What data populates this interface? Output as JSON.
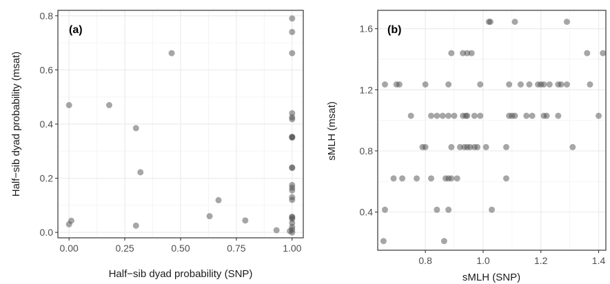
{
  "chart_data": [
    {
      "type": "scatter",
      "panel_label": "(a)",
      "xlabel": "Half−sib dyad probability (SNP)",
      "ylabel": "Half−sib dyad probability (msat)",
      "xlim": [
        -0.05,
        1.05
      ],
      "ylim": [
        -0.02,
        0.82
      ],
      "xticks": [
        0,
        0.25,
        0.5,
        0.75,
        1
      ],
      "xtick_labels": [
        "0.00",
        "0.25",
        "0.50",
        "0.75",
        "1.00"
      ],
      "yticks": [
        0,
        0.2,
        0.4,
        0.6,
        0.8
      ],
      "ytick_labels": [
        "0.0",
        "0.2",
        "0.4",
        "0.6",
        "0.8"
      ],
      "grid": true,
      "point_color": "#4d4d4d",
      "points": [
        {
          "x": 0.0,
          "y": 0.47
        },
        {
          "x": 0.0,
          "y": 0.03
        },
        {
          "x": 0.01,
          "y": 0.043
        },
        {
          "x": 0.18,
          "y": 0.47
        },
        {
          "x": 0.3,
          "y": 0.385
        },
        {
          "x": 0.32,
          "y": 0.222
        },
        {
          "x": 0.3,
          "y": 0.025
        },
        {
          "x": 0.46,
          "y": 0.662
        },
        {
          "x": 0.63,
          "y": 0.06
        },
        {
          "x": 0.67,
          "y": 0.119
        },
        {
          "x": 0.79,
          "y": 0.044
        },
        {
          "x": 0.93,
          "y": 0.008
        },
        {
          "x": 0.99,
          "y": 0.005
        },
        {
          "x": 1.0,
          "y": 0.79
        },
        {
          "x": 1.0,
          "y": 0.74
        },
        {
          "x": 1.0,
          "y": 0.662
        },
        {
          "x": 1.0,
          "y": 0.44
        },
        {
          "x": 1.0,
          "y": 0.425
        },
        {
          "x": 1.0,
          "y": 0.418
        },
        {
          "x": 1.0,
          "y": 0.352
        },
        {
          "x": 1.0,
          "y": 0.35
        },
        {
          "x": 1.0,
          "y": 0.353
        },
        {
          "x": 1.0,
          "y": 0.24
        },
        {
          "x": 1.0,
          "y": 0.238
        },
        {
          "x": 1.0,
          "y": 0.175
        },
        {
          "x": 1.0,
          "y": 0.165
        },
        {
          "x": 1.0,
          "y": 0.155
        },
        {
          "x": 1.0,
          "y": 0.13
        },
        {
          "x": 1.0,
          "y": 0.12
        },
        {
          "x": 1.0,
          "y": 0.058
        },
        {
          "x": 1.0,
          "y": 0.055
        },
        {
          "x": 1.0,
          "y": 0.05
        },
        {
          "x": 1.0,
          "y": 0.035
        },
        {
          "x": 1.0,
          "y": 0.02
        },
        {
          "x": 1.0,
          "y": 0.01
        },
        {
          "x": 1.0,
          "y": 0.0
        }
      ]
    },
    {
      "type": "scatter",
      "panel_label": "(b)",
      "xlabel": "sMLH (SNP)",
      "ylabel": "sMLH (msat)",
      "xlim": [
        0.635,
        1.425
      ],
      "ylim": [
        0.15,
        1.72
      ],
      "xticks": [
        0.8,
        1.0,
        1.2,
        1.4
      ],
      "xtick_labels": [
        "0.8",
        "1.0",
        "1.2",
        "1.4"
      ],
      "yticks": [
        0.4,
        0.8,
        1.2,
        1.6
      ],
      "ytick_labels": [
        "0.4",
        "0.8",
        "1.2",
        "1.6"
      ],
      "grid": true,
      "point_color": "#4d4d4d",
      "points": [
        {
          "x": 1.02,
          "y": 1.645
        },
        {
          "x": 1.025,
          "y": 1.645
        },
        {
          "x": 1.11,
          "y": 1.645
        },
        {
          "x": 1.29,
          "y": 1.645
        },
        {
          "x": 0.89,
          "y": 1.44
        },
        {
          "x": 0.93,
          "y": 1.44
        },
        {
          "x": 0.945,
          "y": 1.44
        },
        {
          "x": 0.96,
          "y": 1.44
        },
        {
          "x": 1.36,
          "y": 1.44
        },
        {
          "x": 1.415,
          "y": 1.44
        },
        {
          "x": 0.66,
          "y": 1.235
        },
        {
          "x": 0.7,
          "y": 1.235
        },
        {
          "x": 0.71,
          "y": 1.235
        },
        {
          "x": 0.8,
          "y": 1.235
        },
        {
          "x": 0.88,
          "y": 1.235
        },
        {
          "x": 0.99,
          "y": 1.235
        },
        {
          "x": 1.09,
          "y": 1.235
        },
        {
          "x": 1.13,
          "y": 1.235
        },
        {
          "x": 1.16,
          "y": 1.235
        },
        {
          "x": 1.19,
          "y": 1.235
        },
        {
          "x": 1.2,
          "y": 1.235
        },
        {
          "x": 1.21,
          "y": 1.235
        },
        {
          "x": 1.23,
          "y": 1.235
        },
        {
          "x": 1.26,
          "y": 1.235
        },
        {
          "x": 1.27,
          "y": 1.235
        },
        {
          "x": 1.29,
          "y": 1.235
        },
        {
          "x": 1.37,
          "y": 1.235
        },
        {
          "x": 0.75,
          "y": 1.03
        },
        {
          "x": 0.82,
          "y": 1.03
        },
        {
          "x": 0.84,
          "y": 1.03
        },
        {
          "x": 0.86,
          "y": 1.03
        },
        {
          "x": 0.88,
          "y": 1.03
        },
        {
          "x": 0.9,
          "y": 1.03
        },
        {
          "x": 0.93,
          "y": 1.03
        },
        {
          "x": 0.94,
          "y": 1.03
        },
        {
          "x": 0.945,
          "y": 1.03
        },
        {
          "x": 0.97,
          "y": 1.03
        },
        {
          "x": 0.99,
          "y": 1.03
        },
        {
          "x": 1.09,
          "y": 1.03
        },
        {
          "x": 1.1,
          "y": 1.03
        },
        {
          "x": 1.11,
          "y": 1.03
        },
        {
          "x": 1.15,
          "y": 1.03
        },
        {
          "x": 1.17,
          "y": 1.03
        },
        {
          "x": 1.21,
          "y": 1.03
        },
        {
          "x": 1.22,
          "y": 1.03
        },
        {
          "x": 1.26,
          "y": 1.03
        },
        {
          "x": 1.4,
          "y": 1.03
        },
        {
          "x": 0.79,
          "y": 0.825
        },
        {
          "x": 0.8,
          "y": 0.825
        },
        {
          "x": 0.89,
          "y": 0.825
        },
        {
          "x": 0.92,
          "y": 0.825
        },
        {
          "x": 0.935,
          "y": 0.825
        },
        {
          "x": 0.945,
          "y": 0.825
        },
        {
          "x": 0.955,
          "y": 0.825
        },
        {
          "x": 0.97,
          "y": 0.825
        },
        {
          "x": 0.98,
          "y": 0.825
        },
        {
          "x": 1.01,
          "y": 0.825
        },
        {
          "x": 1.08,
          "y": 0.825
        },
        {
          "x": 1.31,
          "y": 0.825
        },
        {
          "x": 0.69,
          "y": 0.62
        },
        {
          "x": 0.72,
          "y": 0.62
        },
        {
          "x": 0.77,
          "y": 0.62
        },
        {
          "x": 0.82,
          "y": 0.62
        },
        {
          "x": 0.87,
          "y": 0.62
        },
        {
          "x": 0.88,
          "y": 0.62
        },
        {
          "x": 0.89,
          "y": 0.62
        },
        {
          "x": 0.91,
          "y": 0.62
        },
        {
          "x": 1.08,
          "y": 0.62
        },
        {
          "x": 0.66,
          "y": 0.415
        },
        {
          "x": 0.84,
          "y": 0.415
        },
        {
          "x": 0.88,
          "y": 0.415
        },
        {
          "x": 1.03,
          "y": 0.415
        },
        {
          "x": 0.655,
          "y": 0.21
        },
        {
          "x": 0.865,
          "y": 0.21
        }
      ]
    }
  ]
}
